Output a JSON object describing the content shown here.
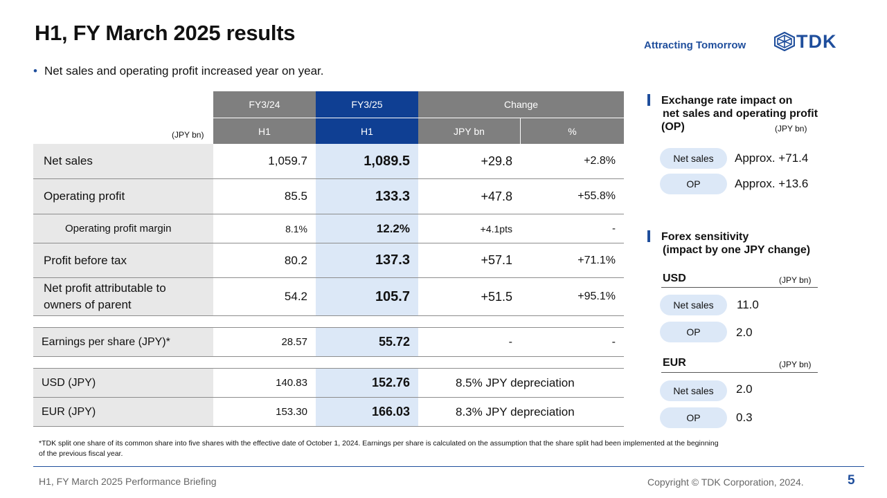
{
  "header": {
    "title": "H1, FY March 2025 results",
    "bullet": "Net sales and operating profit increased year on year.",
    "tagline": "Attracting Tomorrow",
    "logo_text": "TDK",
    "brand_color": "#1f4e9c"
  },
  "table": {
    "unit": "(JPY bn)",
    "headers": {
      "fy24": "FY3/24",
      "fy25": "FY3/25",
      "change": "Change",
      "h1_a": "H1",
      "h1_b": "H1",
      "jpybn": "JPY bn",
      "pct": "%"
    },
    "rows": [
      {
        "label": "Net sales",
        "fy24": "1,059.7",
        "fy25": "1,089.5",
        "chg": "+29.8",
        "pct": "+2.8%"
      },
      {
        "label": "Operating profit",
        "fy24": "85.5",
        "fy25": "133.3",
        "chg": "+47.8",
        "pct": "+55.8%"
      },
      {
        "label": "Operating profit margin",
        "fy24": "8.1%",
        "fy25": "12.2%",
        "chg": "+4.1pts",
        "pct": "-"
      },
      {
        "label": "Profit before tax",
        "fy24": "80.2",
        "fy25": "137.3",
        "chg": "+57.1",
        "pct": "+71.1%"
      },
      {
        "label_line1": "Net profit attributable to",
        "label_line2": "owners of parent",
        "fy24": "54.2",
        "fy25": "105.7",
        "chg": "+51.5",
        "pct": "+95.1%"
      }
    ],
    "eps": {
      "label": "Earnings per share (JPY)*",
      "fy24": "28.57",
      "fy25": "55.72",
      "chg": "-",
      "pct": "-"
    },
    "fx": [
      {
        "label": "USD (JPY)",
        "fy24": "140.83",
        "fy25": "152.76",
        "change": "8.5% JPY depreciation"
      },
      {
        "label": "EUR (JPY)",
        "fy24": "153.30",
        "fy25": "166.03",
        "change": "8.3% JPY depreciation"
      }
    ],
    "header_colors": {
      "gray": "#7f7f7f",
      "blue": "#0f3f93"
    },
    "highlight_color": "#dce8f7"
  },
  "exchange_impact": {
    "title_line1": "Exchange rate impact on",
    "title_line2": "net sales and operating profit",
    "title_line3": "(OP)",
    "unit": "(JPY bn)",
    "items": [
      {
        "label": "Net sales",
        "value": "Approx. +71.4"
      },
      {
        "label": "OP",
        "value": "Approx. +13.6"
      }
    ]
  },
  "forex_sensitivity": {
    "title_line1": "Forex sensitivity",
    "title_line2": "(impact by one JPY change)",
    "usd": {
      "heading": "USD",
      "unit": "(JPY bn)",
      "items": [
        {
          "label": "Net sales",
          "value": "11.0"
        },
        {
          "label": "OP",
          "value": "2.0"
        }
      ]
    },
    "eur": {
      "heading": "EUR",
      "unit": "(JPY bn)",
      "items": [
        {
          "label": "Net sales",
          "value": "2.0"
        },
        {
          "label": "OP",
          "value": "0.3"
        }
      ]
    }
  },
  "footnote": "*TDK split one share of its common share into five shares with the effective date of October 1, 2024. Earnings per share is calculated on the assumption that the share split had been implemented at the beginning of the previous fiscal year.",
  "footer": {
    "left": "H1, FY March 2025 Performance Briefing",
    "copyright": "Copyright  © TDK Corporation, 2024.",
    "page": "5"
  }
}
